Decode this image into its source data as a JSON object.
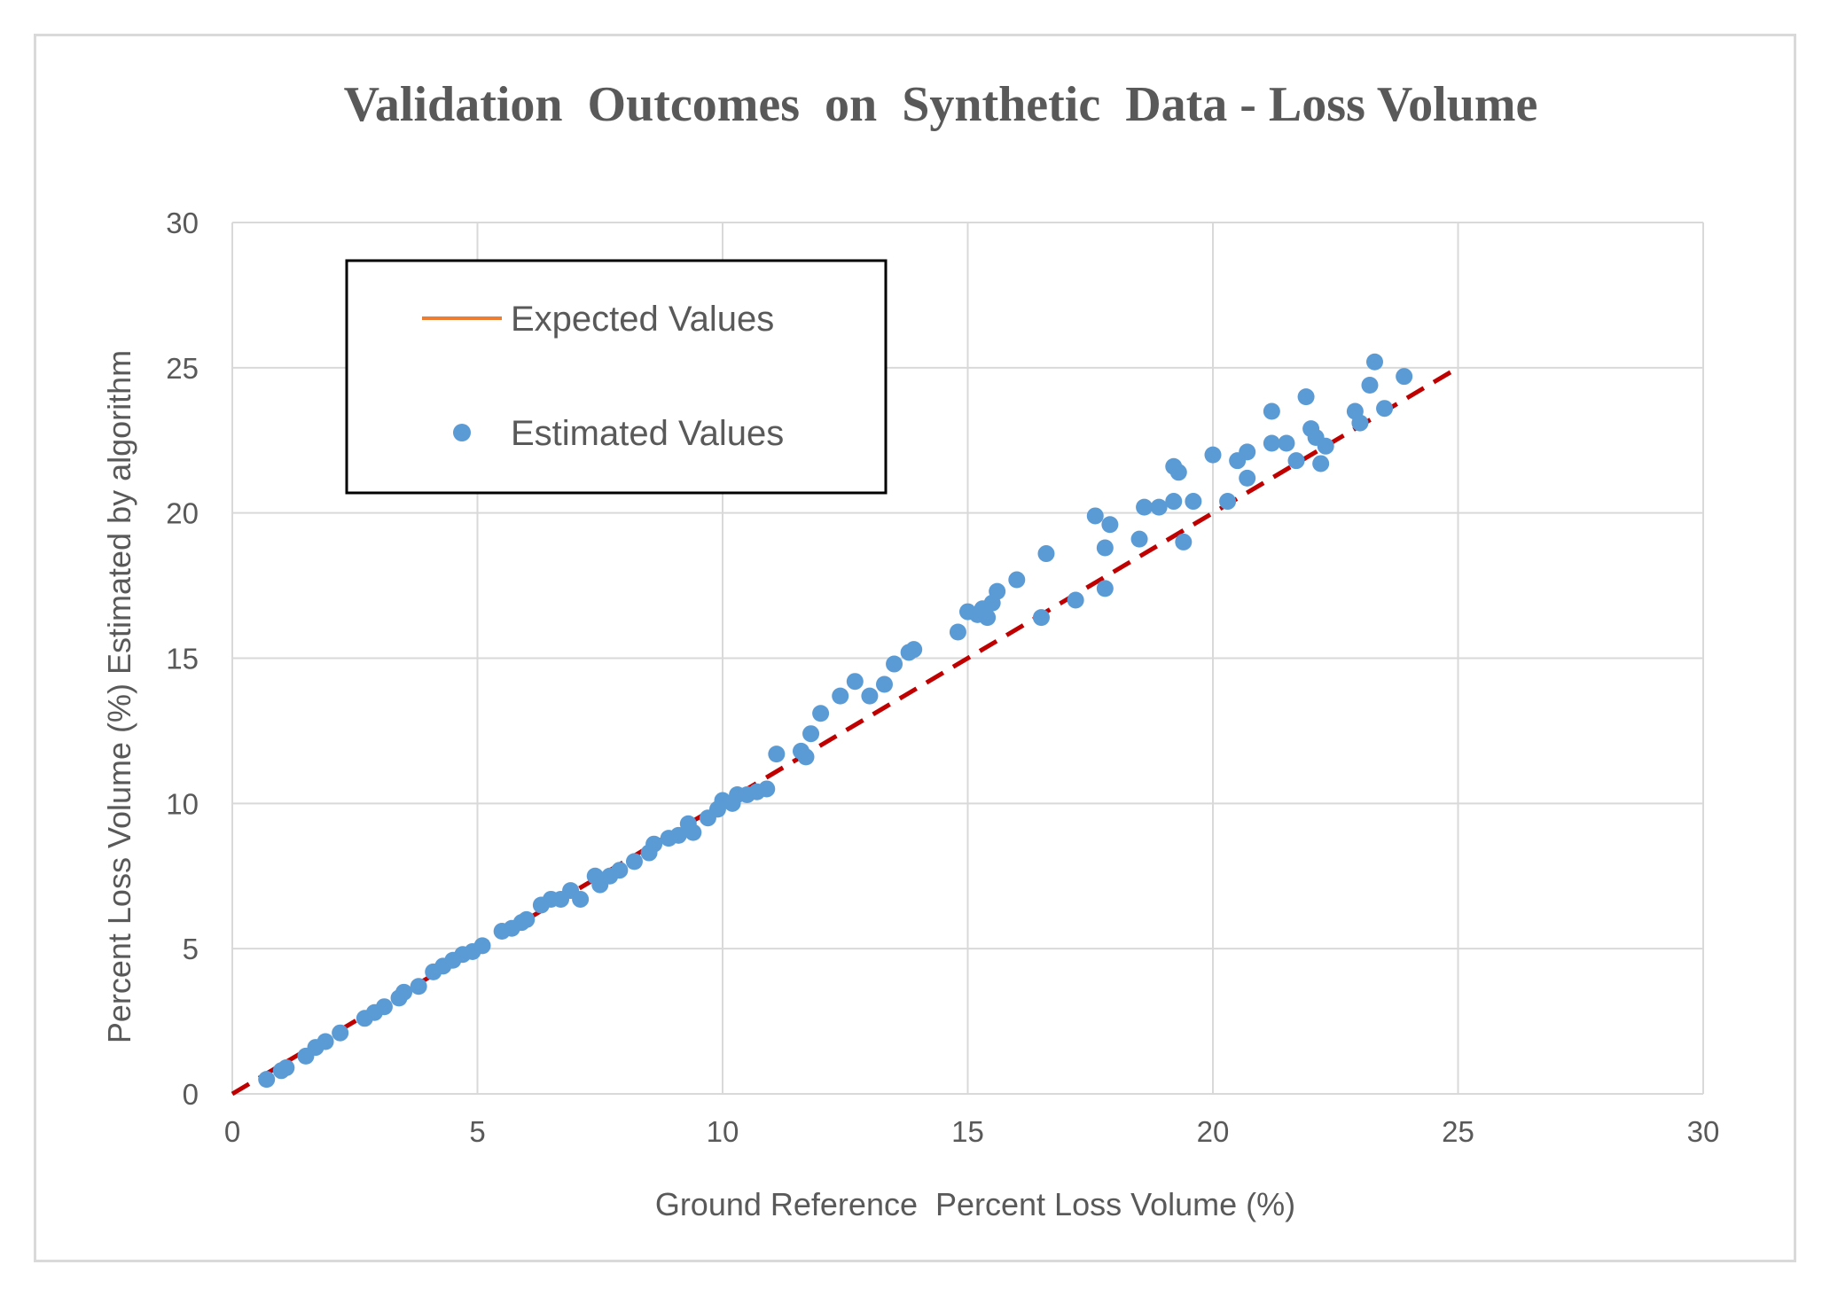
{
  "chart_data": {
    "type": "scatter",
    "title": "Validation  Outcomes  on  Synthetic  Data - Loss Volume",
    "xlabel": "Ground Reference  Percent Loss Volume (%)",
    "ylabel": "Percent Loss Volume (%) Estimated by algorithm",
    "xlim": [
      0,
      30
    ],
    "ylim": [
      0,
      30
    ],
    "xticks": [
      "0",
      "5",
      "10",
      "15",
      "20",
      "25",
      "30"
    ],
    "yticks": [
      "0",
      "5",
      "10",
      "15",
      "20",
      "25",
      "30"
    ],
    "grid": true,
    "legend_position": "top-left",
    "series": [
      {
        "name": "Expected Values",
        "kind": "line",
        "style": "dashed",
        "line_color": "#c00000",
        "legend_color": "#ed7d31",
        "x": [
          0,
          25
        ],
        "y": [
          0,
          25
        ]
      },
      {
        "name": "Estimated Values",
        "kind": "scatter",
        "color": "#5b9bd5",
        "x": [
          0.7,
          1.0,
          1.1,
          1.5,
          1.7,
          1.9,
          2.2,
          2.7,
          2.9,
          3.1,
          3.4,
          3.5,
          3.8,
          4.1,
          4.3,
          4.5,
          4.7,
          4.9,
          5.1,
          5.5,
          5.7,
          5.9,
          6.0,
          6.3,
          6.5,
          6.7,
          6.9,
          7.1,
          7.4,
          7.5,
          7.7,
          7.9,
          8.2,
          8.5,
          8.6,
          8.9,
          9.1,
          9.3,
          9.4,
          9.7,
          9.9,
          10.0,
          10.2,
          10.3,
          10.5,
          10.7,
          10.9,
          11.1,
          11.6,
          11.7,
          11.8,
          12.0,
          12.4,
          12.7,
          13.0,
          13.3,
          13.5,
          13.8,
          13.9,
          14.8,
          15.0,
          15.2,
          15.3,
          15.4,
          15.5,
          15.6,
          16.0,
          16.5,
          16.6,
          17.2,
          17.6,
          17.8,
          17.8,
          17.9,
          18.5,
          18.6,
          18.9,
          19.2,
          19.2,
          19.3,
          19.4,
          19.6,
          20.0,
          20.3,
          20.5,
          20.7,
          20.7,
          21.2,
          21.2,
          21.5,
          21.7,
          21.9,
          22.0,
          22.1,
          22.2,
          22.3,
          22.9,
          23.0,
          23.2,
          23.3,
          23.5,
          23.9
        ],
        "y": [
          0.5,
          0.8,
          0.9,
          1.3,
          1.6,
          1.8,
          2.1,
          2.6,
          2.8,
          3.0,
          3.3,
          3.5,
          3.7,
          4.2,
          4.4,
          4.6,
          4.8,
          4.9,
          5.1,
          5.6,
          5.7,
          5.9,
          6.0,
          6.5,
          6.7,
          6.7,
          7.0,
          6.7,
          7.5,
          7.2,
          7.5,
          7.7,
          8.0,
          8.3,
          8.6,
          8.8,
          8.9,
          9.3,
          9.0,
          9.5,
          9.8,
          10.1,
          10.0,
          10.3,
          10.3,
          10.4,
          10.5,
          11.7,
          11.8,
          11.6,
          12.4,
          13.1,
          13.7,
          14.2,
          13.7,
          14.1,
          14.8,
          15.2,
          15.3,
          15.9,
          16.6,
          16.5,
          16.7,
          16.4,
          16.9,
          17.3,
          17.7,
          16.4,
          18.6,
          17.0,
          19.9,
          17.4,
          18.8,
          19.6,
          19.1,
          20.2,
          20.2,
          21.6,
          20.4,
          21.4,
          19.0,
          20.4,
          22.0,
          20.4,
          21.8,
          22.1,
          21.2,
          23.5,
          22.4,
          22.4,
          21.8,
          24.0,
          22.9,
          22.6,
          21.7,
          22.3,
          23.5,
          23.1,
          24.4,
          25.2,
          23.6,
          24.7
        ]
      }
    ]
  }
}
